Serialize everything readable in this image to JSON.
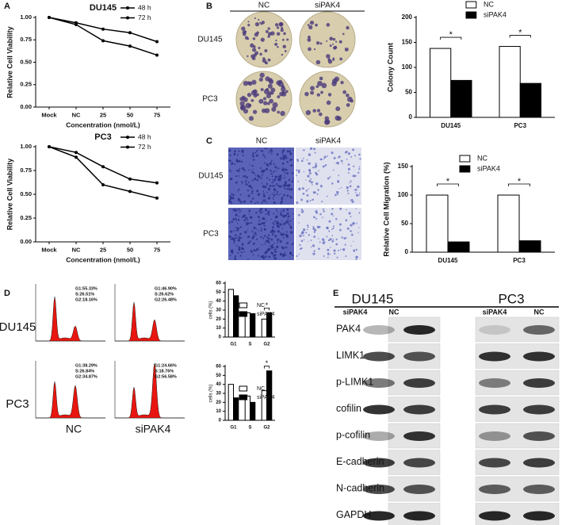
{
  "chart_data": [
    {
      "type": "line",
      "title": "DU145",
      "categories": [
        "Mock",
        "NC",
        "25",
        "50",
        "75"
      ],
      "series": [
        {
          "name": "48 h",
          "color": "#000000",
          "values": [
            1.0,
            0.94,
            0.87,
            0.83,
            0.73
          ]
        },
        {
          "name": "72 h",
          "color": "#000000",
          "values": [
            1.0,
            0.92,
            0.74,
            0.68,
            0.58
          ]
        }
      ],
      "ylim": [
        0,
        1.0
      ],
      "yticks": [
        {
          "value": 0,
          "label": "0.00"
        },
        {
          "value": 0.25,
          "label": "0.25"
        },
        {
          "value": 0.5,
          "label": "0.50"
        },
        {
          "value": 0.75,
          "label": "0.75"
        },
        {
          "value": 1.0,
          "label": "1.00"
        }
      ],
      "xlabel": "Concentration (nmol/L)",
      "ylabel": "Relative Cell Viability",
      "legend": "upper right"
    },
    {
      "type": "line",
      "title": "PC3",
      "categories": [
        "Mock",
        "NC",
        "25",
        "50",
        "75"
      ],
      "series": [
        {
          "name": "48 h",
          "color": "#000000",
          "values": [
            1.0,
            0.94,
            0.79,
            0.66,
            0.62
          ]
        },
        {
          "name": "72 h",
          "color": "#000000",
          "values": [
            1.0,
            0.89,
            0.6,
            0.53,
            0.46
          ]
        }
      ],
      "ylim": [
        0,
        1.0
      ],
      "yticks": [
        {
          "value": 0,
          "label": "0.00"
        },
        {
          "value": 0.25,
          "label": "0.25"
        },
        {
          "value": 0.5,
          "label": "0.50"
        },
        {
          "value": 0.75,
          "label": "0.75"
        },
        {
          "value": 1.0,
          "label": "1.00"
        }
      ],
      "xlabel": "Concentration (nmol/L)",
      "ylabel": "Relative Cell Viability",
      "legend": "upper right"
    },
    {
      "type": "bar",
      "categories": [
        "DU145",
        "PC3"
      ],
      "series": [
        {
          "name": "NC",
          "color": "#ffffff",
          "values": [
            138,
            142
          ]
        },
        {
          "name": "siPAK4",
          "color": "#000000",
          "values": [
            74,
            68
          ]
        }
      ],
      "ylim": [
        0,
        200
      ],
      "yticks": [
        0,
        50,
        100,
        150,
        200
      ],
      "ylabel": "Colony Count",
      "annotations": [
        "*",
        "*"
      ],
      "legend": "upper right"
    },
    {
      "type": "bar",
      "categories": [
        "DU145",
        "PC3"
      ],
      "series": [
        {
          "name": "NC",
          "color": "#ffffff",
          "values": [
            100,
            100
          ]
        },
        {
          "name": "siPAK4",
          "color": "#000000",
          "values": [
            18,
            20
          ]
        }
      ],
      "ylim": [
        0,
        150
      ],
      "yticks": [
        0,
        50,
        100,
        150
      ],
      "ylabel": "Relative Cell Migration (%)",
      "annotations": [
        "*",
        "*"
      ],
      "legend": "upper right"
    },
    {
      "type": "bar",
      "categories": [
        "G1",
        "S",
        "G2"
      ],
      "series": [
        {
          "name": "NC",
          "color": "#ffffff",
          "values": [
            53,
            27,
            20
          ]
        },
        {
          "name": "siPAK4",
          "color": "#000000",
          "values": [
            46,
            26,
            27
          ]
        }
      ],
      "ylim": [
        0,
        60
      ],
      "yticks": [
        0,
        10,
        20,
        30,
        40,
        50,
        60
      ],
      "ylabel": "cells (%)",
      "annotations": [
        null,
        null,
        "*"
      ],
      "legend": "upper right"
    },
    {
      "type": "bar",
      "categories": [
        "G1",
        "S",
        "G2"
      ],
      "series": [
        {
          "name": "NC",
          "color": "#ffffff",
          "values": [
            40,
            27,
            33
          ]
        },
        {
          "name": "siPAK4",
          "color": "#000000",
          "values": [
            25,
            20,
            55
          ]
        }
      ],
      "ylim": [
        0,
        60
      ],
      "yticks": [
        0,
        10,
        20,
        30,
        40,
        50,
        60
      ],
      "ylabel": "cells (%)",
      "annotations": [
        null,
        null,
        "*"
      ],
      "legend": "upper right"
    }
  ],
  "panel_labels": [
    "A",
    "B",
    "C",
    "D",
    "E"
  ],
  "colony": {
    "columns": [
      "NC",
      "siPAK4"
    ],
    "rows": [
      "DU145",
      "PC3"
    ]
  },
  "migration": {
    "columns": [
      "NC",
      "siPAK4"
    ],
    "rows": [
      "DU145",
      "PC3"
    ]
  },
  "flow": {
    "columns": [
      "NC",
      "siPAK4"
    ],
    "rows": [
      "DU145",
      "PC3"
    ],
    "stats": [
      [
        [
          "G1:55.33%",
          "S:26.51%",
          "G2:18.16%"
        ],
        [
          "G1:46.90%",
          "S:26.62%",
          "G2:26.48%"
        ]
      ],
      [
        [
          "G1:38.29%",
          "S:26.84%",
          "G2:34.87%"
        ],
        [
          "G1:24.66%",
          "S:18.76%",
          "G2:56.58%"
        ]
      ]
    ]
  },
  "blot": {
    "cell_lines": [
      "DU145",
      "PC3"
    ],
    "lanes": [
      "siPAK4",
      "NC",
      "siPAK4",
      "NC"
    ],
    "proteins": [
      "PAK4",
      "LIMK1",
      "p-LIMK1",
      "cofilin",
      "p-cofilin",
      "E-cadherin",
      "N-cadherin",
      "GAPDH"
    ]
  }
}
